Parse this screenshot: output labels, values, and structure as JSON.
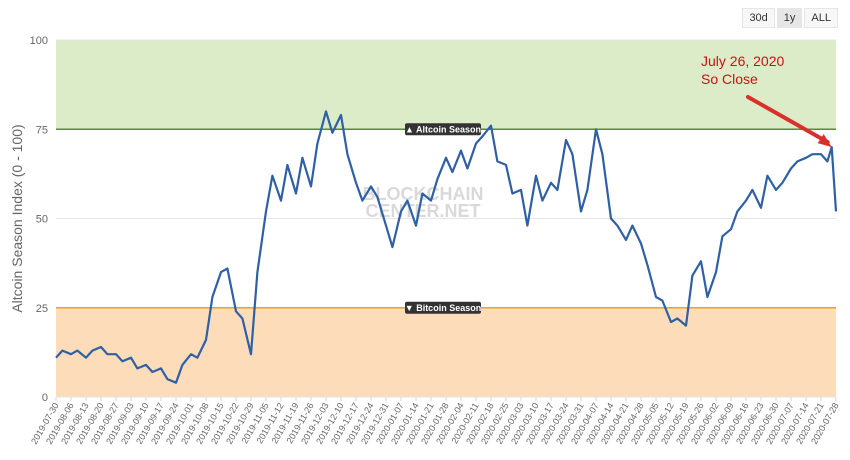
{
  "range_buttons": [
    {
      "label": "30d",
      "active": false
    },
    {
      "label": "1y",
      "active": true
    },
    {
      "label": "ALL",
      "active": false
    }
  ],
  "chart_data": {
    "type": "line",
    "ylabel": "Altcoin Season Index (0 - 100)",
    "ylim": [
      0,
      100
    ],
    "yticks": [
      0,
      25,
      50,
      75,
      100
    ],
    "bands": [
      {
        "label": "▲ Altcoin Season",
        "from": 75,
        "to": 100,
        "color": "#dcebc8",
        "line_color": "#5c8a2e"
      },
      {
        "label": "▼ Bitcoin Season",
        "from": 0,
        "to": 25,
        "color": "#fcdcb9",
        "line_color": "#f0a020"
      }
    ],
    "watermark": [
      "BLOCKCHAIN",
      "CENTER.NET"
    ],
    "annotation": {
      "lines": [
        "July 26, 2020",
        "So Close"
      ],
      "x": "2020-07-26",
      "y": 70
    },
    "line_color": "#2f5fa5",
    "x_tick_labels": [
      "2019-07-30",
      "2019-08-06",
      "2019-08-13",
      "2019-08-20",
      "2019-08-27",
      "2019-09-03",
      "2019-09-10",
      "2019-09-17",
      "2019-09-24",
      "2019-10-01",
      "2019-10-08",
      "2019-10-15",
      "2019-10-22",
      "2019-10-29",
      "2019-11-05",
      "2019-11-12",
      "2019-11-19",
      "2019-11-26",
      "2019-12-03",
      "2019-12-10",
      "2019-12-17",
      "2019-12-24",
      "2019-12-31",
      "2020-01-07",
      "2020-01-14",
      "2020-01-21",
      "2020-01-28",
      "2020-02-04",
      "2020-02-11",
      "2020-02-18",
      "2020-02-25",
      "2020-03-03",
      "2020-03-10",
      "2020-03-17",
      "2020-03-24",
      "2020-03-31",
      "2020-04-07",
      "2020-04-14",
      "2020-04-21",
      "2020-04-28",
      "2020-05-05",
      "2020-05-12",
      "2020-05-19",
      "2020-05-26",
      "2020-06-02",
      "2020-06-09",
      "2020-06-16",
      "2020-06-23",
      "2020-06-30",
      "2020-07-07",
      "2020-07-14",
      "2020-07-21",
      "2020-07-28"
    ],
    "x": [
      "2019-07-30",
      "2019-08-02",
      "2019-08-06",
      "2019-08-09",
      "2019-08-13",
      "2019-08-16",
      "2019-08-20",
      "2019-08-23",
      "2019-08-27",
      "2019-08-30",
      "2019-09-03",
      "2019-09-06",
      "2019-09-10",
      "2019-09-13",
      "2019-09-17",
      "2019-09-20",
      "2019-09-24",
      "2019-09-27",
      "2019-10-01",
      "2019-10-04",
      "2019-10-08",
      "2019-10-11",
      "2019-10-15",
      "2019-10-18",
      "2019-10-22",
      "2019-10-25",
      "2019-10-29",
      "2019-11-01",
      "2019-11-05",
      "2019-11-08",
      "2019-11-12",
      "2019-11-15",
      "2019-11-19",
      "2019-11-22",
      "2019-11-26",
      "2019-11-29",
      "2019-12-03",
      "2019-12-06",
      "2019-12-10",
      "2019-12-13",
      "2019-12-17",
      "2019-12-20",
      "2019-12-24",
      "2019-12-27",
      "2019-12-31",
      "2020-01-03",
      "2020-01-07",
      "2020-01-10",
      "2020-01-14",
      "2020-01-17",
      "2020-01-21",
      "2020-01-24",
      "2020-01-28",
      "2020-01-31",
      "2020-02-04",
      "2020-02-07",
      "2020-02-11",
      "2020-02-14",
      "2020-02-18",
      "2020-02-21",
      "2020-02-25",
      "2020-02-28",
      "2020-03-03",
      "2020-03-06",
      "2020-03-10",
      "2020-03-13",
      "2020-03-17",
      "2020-03-20",
      "2020-03-24",
      "2020-03-27",
      "2020-03-31",
      "2020-04-03",
      "2020-04-07",
      "2020-04-10",
      "2020-04-14",
      "2020-04-17",
      "2020-04-21",
      "2020-04-24",
      "2020-04-28",
      "2020-05-01",
      "2020-05-05",
      "2020-05-08",
      "2020-05-12",
      "2020-05-15",
      "2020-05-19",
      "2020-05-22",
      "2020-05-26",
      "2020-05-29",
      "2020-06-02",
      "2020-06-05",
      "2020-06-09",
      "2020-06-12",
      "2020-06-16",
      "2020-06-19",
      "2020-06-23",
      "2020-06-26",
      "2020-06-30",
      "2020-07-03",
      "2020-07-07",
      "2020-07-10",
      "2020-07-14",
      "2020-07-17",
      "2020-07-21",
      "2020-07-24",
      "2020-07-26",
      "2020-07-28"
    ],
    "series": [
      {
        "values": [
          11,
          13,
          12,
          13,
          11,
          13,
          14,
          12,
          12,
          10,
          11,
          8,
          9,
          7,
          8,
          5,
          4,
          9,
          12,
          11,
          16,
          28,
          35,
          36,
          24,
          22,
          12,
          35,
          52,
          62,
          55,
          65,
          57,
          67,
          59,
          71,
          80,
          74,
          79,
          68,
          60,
          55,
          59,
          56,
          48,
          42,
          52,
          55,
          48,
          57,
          55,
          61,
          67,
          63,
          69,
          64,
          71,
          73,
          76,
          66,
          65,
          57,
          58,
          48,
          62,
          55,
          60,
          58,
          72,
          68,
          52,
          58,
          75,
          68,
          50,
          48,
          44,
          48,
          43,
          37,
          28,
          27,
          21,
          22,
          20,
          34,
          38,
          28,
          35,
          45,
          47,
          52,
          55,
          58,
          53,
          62,
          58,
          60,
          64,
          66,
          67,
          68,
          68,
          66,
          70,
          52
        ]
      }
    ]
  }
}
